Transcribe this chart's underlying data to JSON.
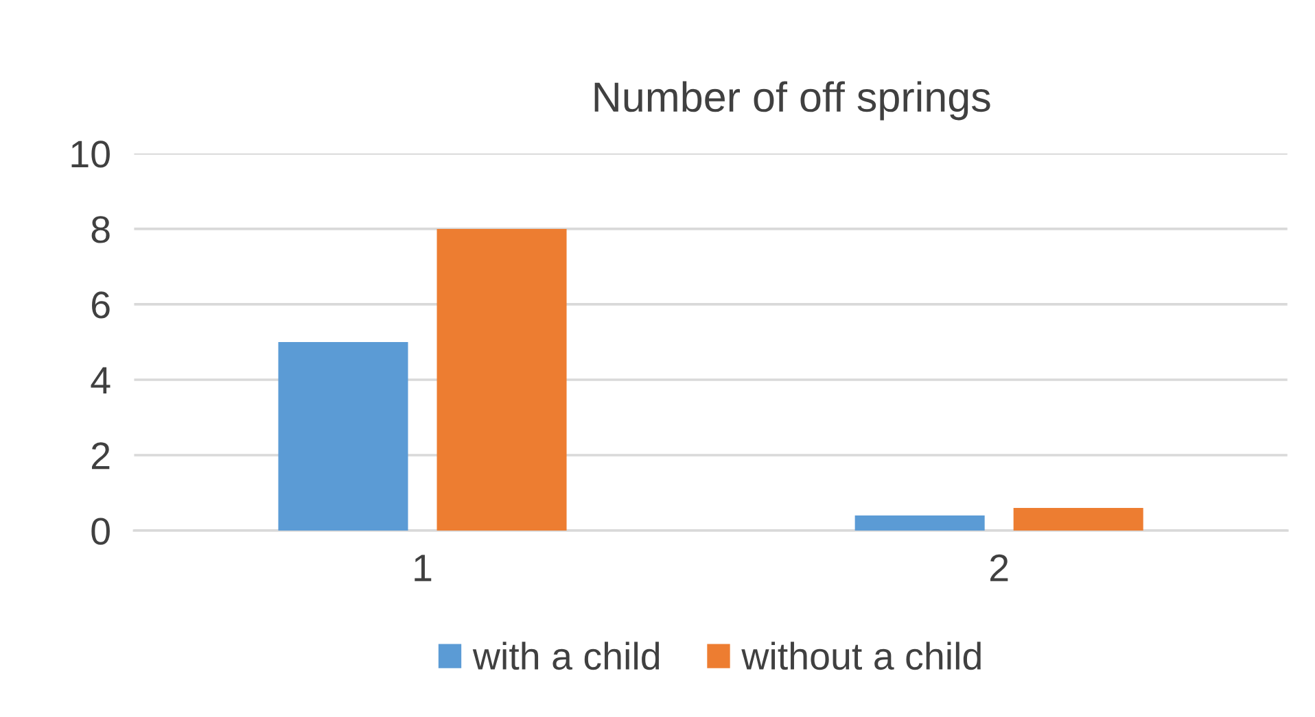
{
  "chart_data": {
    "type": "bar",
    "title": "Number of off springs",
    "categories": [
      "1",
      "2"
    ],
    "series": [
      {
        "name": "with a child",
        "color": "#5b9bd5",
        "values": [
          5,
          0.4
        ]
      },
      {
        "name": "without a child",
        "color": "#ed7d31",
        "values": [
          8,
          0.6
        ]
      }
    ],
    "ylim": [
      0,
      10
    ],
    "yticks": [
      0,
      2,
      4,
      6,
      8,
      10
    ],
    "grid": "y",
    "legend": "bottom"
  }
}
